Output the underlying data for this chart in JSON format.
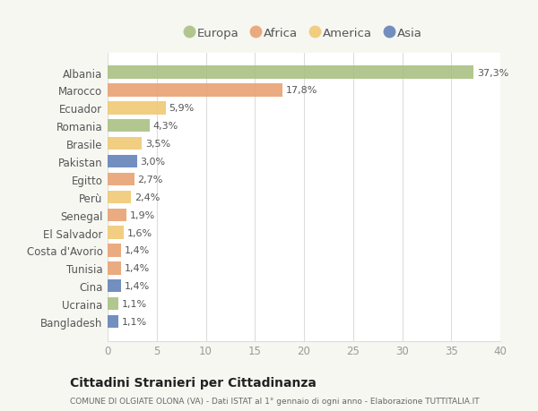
{
  "countries": [
    "Albania",
    "Marocco",
    "Ecuador",
    "Romania",
    "Brasile",
    "Pakistan",
    "Egitto",
    "Perù",
    "Senegal",
    "El Salvador",
    "Costa d'Avorio",
    "Tunisia",
    "Cina",
    "Ucraina",
    "Bangladesh"
  ],
  "values": [
    37.3,
    17.8,
    5.9,
    4.3,
    3.5,
    3.0,
    2.7,
    2.4,
    1.9,
    1.6,
    1.4,
    1.4,
    1.4,
    1.1,
    1.1
  ],
  "labels": [
    "37,3%",
    "17,8%",
    "5,9%",
    "4,3%",
    "3,5%",
    "3,0%",
    "2,7%",
    "2,4%",
    "1,9%",
    "1,6%",
    "1,4%",
    "1,4%",
    "1,4%",
    "1,1%",
    "1,1%"
  ],
  "continents": [
    "Europa",
    "Africa",
    "America",
    "Europa",
    "America",
    "Asia",
    "Africa",
    "America",
    "Africa",
    "America",
    "Africa",
    "Africa",
    "Asia",
    "Europa",
    "Asia"
  ],
  "continent_colors": {
    "Europa": "#a8c080",
    "Africa": "#e8a070",
    "America": "#f0c870",
    "Asia": "#6080b8"
  },
  "legend_order": [
    "Europa",
    "Africa",
    "America",
    "Asia"
  ],
  "title": "Cittadini Stranieri per Cittadinanza",
  "subtitle": "COMUNE DI OLGIATE OLONA (VA) - Dati ISTAT al 1° gennaio di ogni anno - Elaborazione TUTTITALIA.IT",
  "xlim": [
    0,
    40
  ],
  "xticks": [
    0,
    5,
    10,
    15,
    20,
    25,
    30,
    35,
    40
  ],
  "background_color": "#f7f7f2",
  "plot_bg_color": "#ffffff",
  "grid_color": "#dddddd",
  "label_color": "#555555",
  "tick_color": "#999999"
}
